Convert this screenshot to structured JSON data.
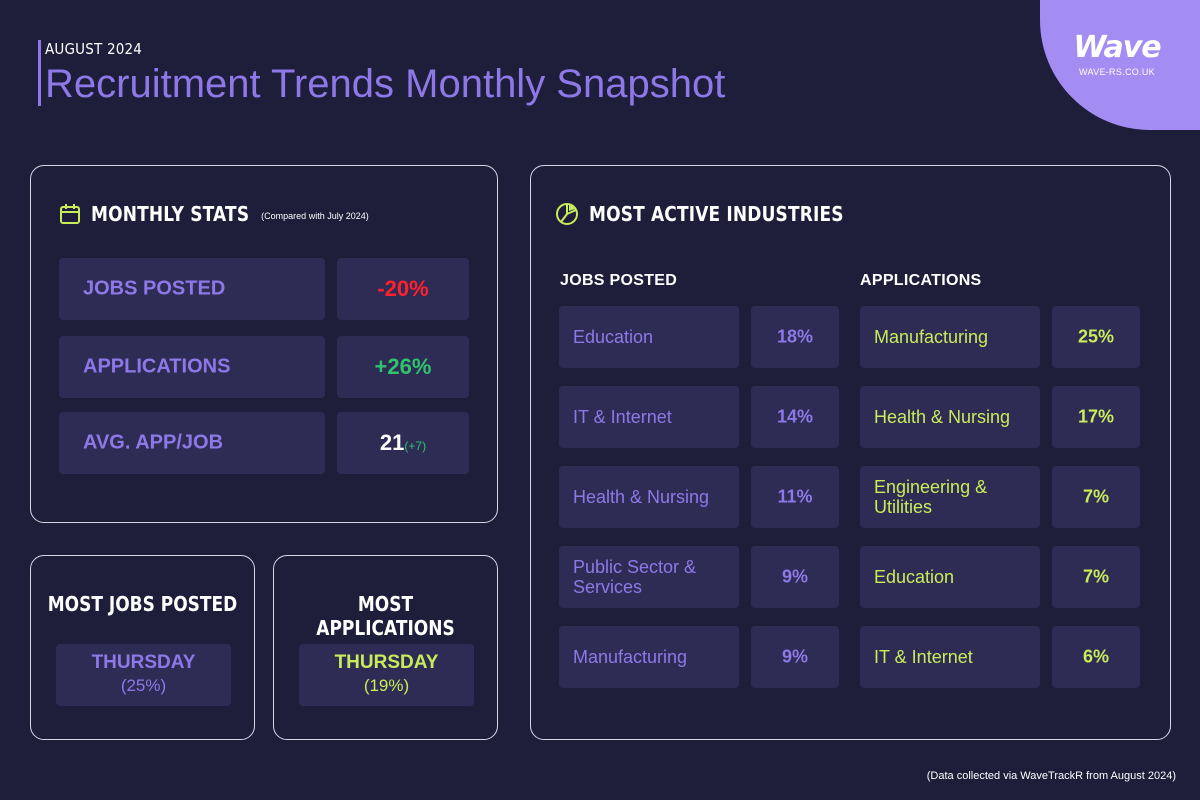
{
  "brand": {
    "name": "Wave",
    "url": "WAVE-RS.CO.UK",
    "accent": "#8e78e8",
    "lime": "#c8ec5a"
  },
  "header": {
    "date": "AUGUST 2024",
    "title": "Recruitment Trends Monthly Snapshot"
  },
  "monthly_stats": {
    "icon": "calendar-icon",
    "title": "MONTHLY STATS",
    "subtitle": "(Compared with July 2024)",
    "rows": [
      {
        "label": "JOBS POSTED",
        "value": "-20%"
      },
      {
        "label": "APPLICATIONS",
        "value": "+26%"
      },
      {
        "label": "AVG. APP/JOB",
        "value": "21",
        "delta": "(+7)"
      }
    ]
  },
  "most_jobs": {
    "title": "MOST JOBS POSTED",
    "day": "THURSDAY",
    "pct": "(25%)"
  },
  "most_apps": {
    "title": "MOST APPLICATIONS",
    "day": "THURSDAY",
    "pct": "(19%)"
  },
  "industries": {
    "icon": "pie-chart-icon",
    "title": "MOST ACTIVE INDUSTRIES",
    "jobs_header": "JOBS POSTED",
    "apps_header": "APPLICATIONS",
    "jobs": [
      {
        "label": "Education",
        "value": "18%"
      },
      {
        "label": "IT & Internet",
        "value": "14%"
      },
      {
        "label": "Health & Nursing",
        "value": "11%"
      },
      {
        "label": "Public Sector & Services",
        "value": "9%"
      },
      {
        "label": "Manufacturing",
        "value": "9%"
      }
    ],
    "apps": [
      {
        "label": "Manufacturing",
        "value": "25%"
      },
      {
        "label": "Health & Nursing",
        "value": "17%"
      },
      {
        "label": "Engineering & Utilities",
        "value": "7%"
      },
      {
        "label": "Education",
        "value": "7%"
      },
      {
        "label": "IT & Internet",
        "value": "6%"
      }
    ]
  },
  "footnote": "(Data collected via WaveTrackR from August 2024)"
}
